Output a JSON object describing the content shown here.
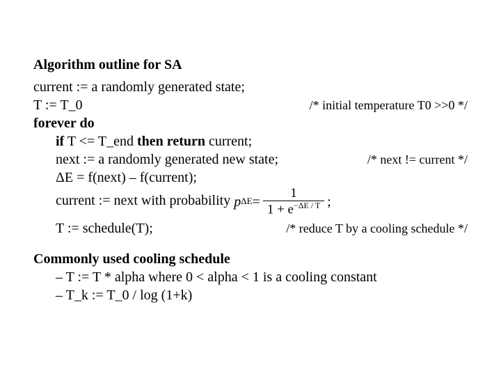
{
  "title": "Algorithm outline for SA",
  "lines": {
    "l1": "current := a randomly generated state;",
    "l2_left": "T := T_0",
    "l2_comment": "/* initial temperature T0 >>0 */",
    "l3_bold": "forever do",
    "l4_pre": "if",
    "l4_mid": " T <= T_end ",
    "l4_post": "then return",
    "l4_tail": " current;",
    "l5_left": "next := a randomly generated new state;",
    "l5_comment": "/* next != current */",
    "l6_delta": "ΔE",
    "l6_rest": " = f(next) – f(current);",
    "l7_text": "current := next with probability ",
    "l7_p": "p",
    "l7_psub": "ΔE",
    "l7_eq": " = ",
    "l7_num": "1",
    "l7_den_pre": "1 + e",
    "l7_den_sup": "−ΔE / T",
    "l7_semi": " ;",
    "l8_left": "T := schedule(T);",
    "l8_comment": "/* reduce T by a cooling schedule */"
  },
  "section2_title": "Commonly used cooling schedule",
  "bullets": {
    "b1": "– T := T * alpha where 0 < alpha < 1 is a cooling constant",
    "b2": "– T_k := T_0 / log (1+k)"
  }
}
